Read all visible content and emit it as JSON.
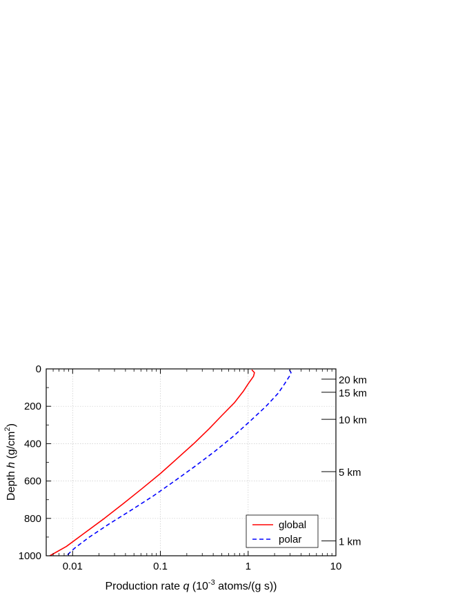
{
  "chart_data": {
    "type": "line",
    "x_scale": "log",
    "y_inverted": true,
    "xlim": [
      0.005,
      10
    ],
    "ylim": [
      0,
      1000
    ],
    "xlabel": {
      "prefix": "Production rate ",
      "var": "q",
      "unit_open": " (10",
      "unit_exp": "-3",
      "unit_close": " atoms/(g s))"
    },
    "ylabel": {
      "prefix": "Depth ",
      "var": "h",
      "unit_open": " (g/cm",
      "unit_exp": "2",
      "unit_close": ")"
    },
    "x_ticks": [
      {
        "value": 0.01,
        "label": "0.01"
      },
      {
        "value": 0.1,
        "label": "0.1"
      },
      {
        "value": 1,
        "label": "1"
      },
      {
        "value": 10,
        "label": "10"
      }
    ],
    "y_ticks": [
      {
        "value": 0,
        "label": "0"
      },
      {
        "value": 200,
        "label": "200"
      },
      {
        "value": 400,
        "label": "400"
      },
      {
        "value": 600,
        "label": "600"
      },
      {
        "value": 800,
        "label": "800"
      },
      {
        "value": 1000,
        "label": "1000"
      }
    ],
    "altitude_ticks": [
      {
        "depth": 55,
        "label": "20 km"
      },
      {
        "depth": 125,
        "label": "15 km"
      },
      {
        "depth": 270,
        "label": "10 km"
      },
      {
        "depth": 550,
        "label": "5 km"
      },
      {
        "depth": 920,
        "label": "1 km"
      }
    ],
    "grid": true,
    "legend_position": "bottom-right",
    "series": [
      {
        "name": "global",
        "color": "#ff0000",
        "dash": "solid",
        "points": [
          [
            1.1,
            5
          ],
          [
            1.18,
            20
          ],
          [
            1.15,
            40
          ],
          [
            1.0,
            80
          ],
          [
            0.88,
            120
          ],
          [
            0.7,
            180
          ],
          [
            0.5,
            250
          ],
          [
            0.36,
            320
          ],
          [
            0.24,
            400
          ],
          [
            0.155,
            480
          ],
          [
            0.1,
            560
          ],
          [
            0.062,
            640
          ],
          [
            0.038,
            720
          ],
          [
            0.023,
            800
          ],
          [
            0.0135,
            880
          ],
          [
            0.0085,
            950
          ],
          [
            0.0055,
            1000
          ]
        ]
      },
      {
        "name": "polar",
        "color": "#0000ff",
        "dash": "dashed",
        "points": [
          [
            2.95,
            5
          ],
          [
            3.08,
            20
          ],
          [
            2.95,
            40
          ],
          [
            2.6,
            80
          ],
          [
            2.2,
            130
          ],
          [
            1.6,
            200
          ],
          [
            1.05,
            280
          ],
          [
            0.68,
            360
          ],
          [
            0.42,
            440
          ],
          [
            0.25,
            520
          ],
          [
            0.145,
            600
          ],
          [
            0.083,
            680
          ],
          [
            0.045,
            760
          ],
          [
            0.026,
            830
          ],
          [
            0.0155,
            900
          ],
          [
            0.0105,
            960
          ],
          [
            0.0085,
            1000
          ]
        ]
      }
    ]
  }
}
